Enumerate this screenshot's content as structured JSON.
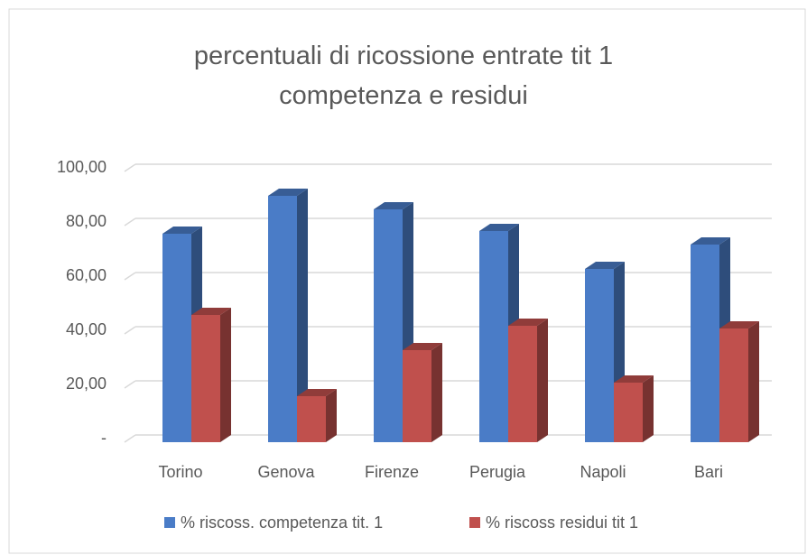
{
  "chart_data": {
    "type": "bar3d",
    "title": "percentuali di ricossione entrate tit 1 competenza e residui",
    "categories": [
      "Torino",
      "Genova",
      "Firenze",
      "Perugia",
      "Napoli",
      "Bari"
    ],
    "series": [
      {
        "name": "% riscoss. competenza tit. 1",
        "color": "#4a7cc7",
        "values": [
          77,
          91,
          86,
          78,
          64,
          73
        ]
      },
      {
        "name": "% riscoss residui tit 1",
        "color": "#c0504d",
        "values": [
          47,
          17,
          34,
          43,
          22,
          42
        ]
      }
    ],
    "ylim": [
      0,
      100
    ],
    "yticks": [
      {
        "value": 0,
        "label": "-"
      },
      {
        "value": 20,
        "label": "20,00"
      },
      {
        "value": 40,
        "label": "40,00"
      },
      {
        "value": 60,
        "label": "60,00"
      },
      {
        "value": 80,
        "label": "80,00"
      },
      {
        "value": 100,
        "label": "100,00"
      }
    ],
    "grid": true,
    "legend": "bottom"
  }
}
